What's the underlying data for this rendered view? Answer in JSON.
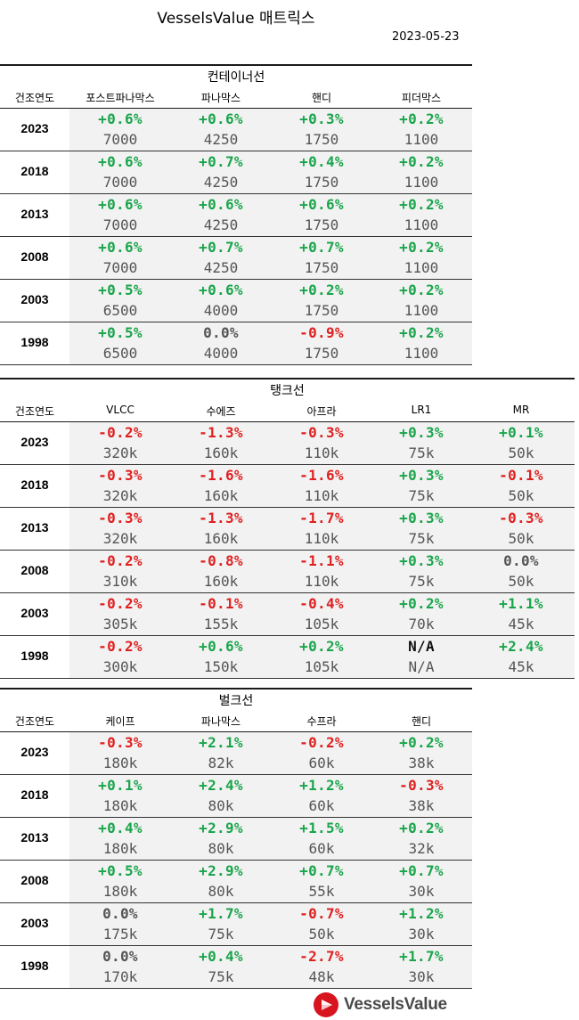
{
  "title": "VesselsValue 매트릭스",
  "date": "2023-05-23",
  "year_header": "건조연도",
  "sections": [
    {
      "title": "컨테이너선",
      "columns": [
        "포스트파나막스",
        "파나막스",
        "핸디",
        "피더막스"
      ],
      "rows": [
        {
          "year": "2023",
          "cells": [
            {
              "pct": "+0.6%",
              "val": "7000",
              "tone": "green"
            },
            {
              "pct": "+0.6%",
              "val": "4250",
              "tone": "green"
            },
            {
              "pct": "+0.3%",
              "val": "1750",
              "tone": "green"
            },
            {
              "pct": "+0.2%",
              "val": "1100",
              "tone": "green"
            }
          ]
        },
        {
          "year": "2018",
          "cells": [
            {
              "pct": "+0.6%",
              "val": "7000",
              "tone": "green"
            },
            {
              "pct": "+0.7%",
              "val": "4250",
              "tone": "green"
            },
            {
              "pct": "+0.4%",
              "val": "1750",
              "tone": "green"
            },
            {
              "pct": "+0.2%",
              "val": "1100",
              "tone": "green"
            }
          ]
        },
        {
          "year": "2013",
          "cells": [
            {
              "pct": "+0.6%",
              "val": "7000",
              "tone": "green"
            },
            {
              "pct": "+0.6%",
              "val": "4250",
              "tone": "green"
            },
            {
              "pct": "+0.6%",
              "val": "1750",
              "tone": "green"
            },
            {
              "pct": "+0.2%",
              "val": "1100",
              "tone": "green"
            }
          ]
        },
        {
          "year": "2008",
          "cells": [
            {
              "pct": "+0.6%",
              "val": "7000",
              "tone": "green"
            },
            {
              "pct": "+0.7%",
              "val": "4250",
              "tone": "green"
            },
            {
              "pct": "+0.7%",
              "val": "1750",
              "tone": "green"
            },
            {
              "pct": "+0.2%",
              "val": "1100",
              "tone": "green"
            }
          ]
        },
        {
          "year": "2003",
          "cells": [
            {
              "pct": "+0.5%",
              "val": "6500",
              "tone": "green"
            },
            {
              "pct": "+0.6%",
              "val": "4000",
              "tone": "green"
            },
            {
              "pct": "+0.2%",
              "val": "1750",
              "tone": "green"
            },
            {
              "pct": "+0.2%",
              "val": "1100",
              "tone": "green"
            }
          ]
        },
        {
          "year": "1998",
          "cells": [
            {
              "pct": "+0.5%",
              "val": "6500",
              "tone": "green"
            },
            {
              "pct": "0.0%",
              "val": "4000",
              "tone": "neutral"
            },
            {
              "pct": "-0.9%",
              "val": "1750",
              "tone": "red"
            },
            {
              "pct": "+0.2%",
              "val": "1100",
              "tone": "green"
            }
          ]
        }
      ]
    },
    {
      "title": "탱크선",
      "columns": [
        "VLCC",
        "수에즈",
        "아프라",
        "LR1",
        "MR"
      ],
      "rows": [
        {
          "year": "2023",
          "cells": [
            {
              "pct": "-0.2%",
              "val": "320k",
              "tone": "red"
            },
            {
              "pct": "-1.3%",
              "val": "160k",
              "tone": "red"
            },
            {
              "pct": "-0.3%",
              "val": "110k",
              "tone": "red"
            },
            {
              "pct": "+0.3%",
              "val": "75k",
              "tone": "green"
            },
            {
              "pct": "+0.1%",
              "val": "50k",
              "tone": "green"
            }
          ]
        },
        {
          "year": "2018",
          "cells": [
            {
              "pct": "-0.3%",
              "val": "320k",
              "tone": "red"
            },
            {
              "pct": "-1.6%",
              "val": "160k",
              "tone": "red"
            },
            {
              "pct": "-1.6%",
              "val": "110k",
              "tone": "red"
            },
            {
              "pct": "+0.3%",
              "val": "75k",
              "tone": "green"
            },
            {
              "pct": "-0.1%",
              "val": "50k",
              "tone": "red"
            }
          ]
        },
        {
          "year": "2013",
          "cells": [
            {
              "pct": "-0.3%",
              "val": "320k",
              "tone": "red"
            },
            {
              "pct": "-1.3%",
              "val": "160k",
              "tone": "red"
            },
            {
              "pct": "-1.7%",
              "val": "110k",
              "tone": "red"
            },
            {
              "pct": "+0.3%",
              "val": "75k",
              "tone": "green"
            },
            {
              "pct": "-0.3%",
              "val": "50k",
              "tone": "red"
            }
          ]
        },
        {
          "year": "2008",
          "cells": [
            {
              "pct": "-0.2%",
              "val": "310k",
              "tone": "red"
            },
            {
              "pct": "-0.8%",
              "val": "160k",
              "tone": "red"
            },
            {
              "pct": "-1.1%",
              "val": "110k",
              "tone": "red"
            },
            {
              "pct": "+0.3%",
              "val": "75k",
              "tone": "green"
            },
            {
              "pct": "0.0%",
              "val": "50k",
              "tone": "neutral"
            }
          ]
        },
        {
          "year": "2003",
          "cells": [
            {
              "pct": "-0.2%",
              "val": "305k",
              "tone": "red"
            },
            {
              "pct": "-0.1%",
              "val": "155k",
              "tone": "red"
            },
            {
              "pct": "-0.4%",
              "val": "105k",
              "tone": "red"
            },
            {
              "pct": "+0.2%",
              "val": "70k",
              "tone": "green"
            },
            {
              "pct": "+1.1%",
              "val": "45k",
              "tone": "green"
            }
          ]
        },
        {
          "year": "1998",
          "cells": [
            {
              "pct": "-0.2%",
              "val": "300k",
              "tone": "red"
            },
            {
              "pct": "+0.6%",
              "val": "150k",
              "tone": "green"
            },
            {
              "pct": "+0.2%",
              "val": "105k",
              "tone": "green"
            },
            {
              "pct": "N/A",
              "val": "N/A",
              "tone": "black"
            },
            {
              "pct": "+2.4%",
              "val": "45k",
              "tone": "green"
            }
          ]
        }
      ]
    },
    {
      "title": "벌크선",
      "columns": [
        "케이프",
        "파나막스",
        "수프라",
        "핸디"
      ],
      "rows": [
        {
          "year": "2023",
          "cells": [
            {
              "pct": "-0.3%",
              "val": "180k",
              "tone": "red"
            },
            {
              "pct": "+2.1%",
              "val": "82k",
              "tone": "green"
            },
            {
              "pct": "-0.2%",
              "val": "60k",
              "tone": "red"
            },
            {
              "pct": "+0.2%",
              "val": "38k",
              "tone": "green"
            }
          ]
        },
        {
          "year": "2018",
          "cells": [
            {
              "pct": "+0.1%",
              "val": "180k",
              "tone": "green"
            },
            {
              "pct": "+2.4%",
              "val": "80k",
              "tone": "green"
            },
            {
              "pct": "+1.2%",
              "val": "60k",
              "tone": "green"
            },
            {
              "pct": "-0.3%",
              "val": "38k",
              "tone": "red"
            }
          ]
        },
        {
          "year": "2013",
          "cells": [
            {
              "pct": "+0.4%",
              "val": "180k",
              "tone": "green"
            },
            {
              "pct": "+2.9%",
              "val": "80k",
              "tone": "green"
            },
            {
              "pct": "+1.5%",
              "val": "60k",
              "tone": "green"
            },
            {
              "pct": "+0.2%",
              "val": "32k",
              "tone": "green"
            }
          ]
        },
        {
          "year": "2008",
          "cells": [
            {
              "pct": "+0.5%",
              "val": "180k",
              "tone": "green"
            },
            {
              "pct": "+2.9%",
              "val": "80k",
              "tone": "green"
            },
            {
              "pct": "+0.7%",
              "val": "55k",
              "tone": "green"
            },
            {
              "pct": "+0.7%",
              "val": "30k",
              "tone": "green"
            }
          ]
        },
        {
          "year": "2003",
          "cells": [
            {
              "pct": "0.0%",
              "val": "175k",
              "tone": "neutral"
            },
            {
              "pct": "+1.7%",
              "val": "75k",
              "tone": "green"
            },
            {
              "pct": "-0.7%",
              "val": "50k",
              "tone": "red"
            },
            {
              "pct": "+1.2%",
              "val": "30k",
              "tone": "green"
            }
          ]
        },
        {
          "year": "1998",
          "cells": [
            {
              "pct": "0.0%",
              "val": "170k",
              "tone": "neutral"
            },
            {
              "pct": "+0.4%",
              "val": "75k",
              "tone": "green"
            },
            {
              "pct": "-2.7%",
              "val": "48k",
              "tone": "red"
            },
            {
              "pct": "+1.7%",
              "val": "30k",
              "tone": "green"
            }
          ]
        }
      ]
    }
  ],
  "logo": {
    "text": "VesselsValue",
    "icon": "vesselsvalue-logo-icon",
    "brand_color": "#d8141f"
  },
  "colors": {
    "positive": "#1aa54b",
    "negative": "#e02020",
    "neutral": "#555555"
  }
}
